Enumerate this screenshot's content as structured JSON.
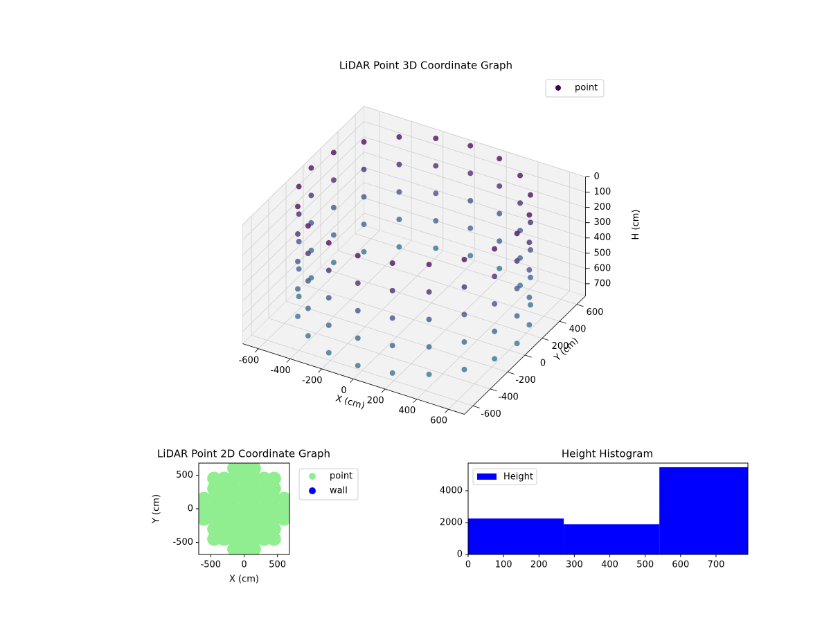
{
  "chart_data": [
    {
      "type": "scatter3d",
      "title": "LiDAR Point 3D Coordinate Graph",
      "xlabel": "X (cm)",
      "ylabel": "Y (cm)",
      "zlabel": "H (cm)",
      "xlim": [
        -700,
        700
      ],
      "ylim": [
        -700,
        700
      ],
      "zlim": [
        0,
        780
      ],
      "z_inverted": true,
      "xticks": [
        -600,
        -400,
        -200,
        0,
        200,
        400,
        600
      ],
      "yticks": [
        -600,
        -400,
        -200,
        0,
        200,
        400,
        600
      ],
      "zticks": [
        0,
        100,
        200,
        300,
        400,
        500,
        600,
        700
      ],
      "legend": "upper right",
      "grid": true,
      "series": [
        {
          "name": "point",
          "color": "#440154",
          "colormap": [
            "#440154",
            "#3b528b",
            "#2c728e"
          ],
          "x": [
            650,
            618,
            526,
            382,
            201,
            0,
            -201,
            -382,
            -526,
            -618,
            -650,
            -618,
            -526,
            -382,
            -201,
            0,
            201,
            382,
            526,
            618,
            650,
            618,
            526,
            382,
            201,
            0,
            -201,
            -382,
            -526,
            -618,
            -650,
            -618,
            -526,
            -382,
            -201,
            0,
            201,
            382,
            526,
            618,
            650,
            618,
            526,
            382,
            201,
            0,
            -201,
            -382,
            -526,
            -618,
            -650,
            -618,
            -526,
            -382,
            -201,
            0,
            201,
            382,
            526,
            618,
            650,
            618,
            526,
            382,
            201,
            0,
            -201,
            -382,
            -526,
            -618,
            -650,
            -618,
            -526,
            -382,
            -201,
            0,
            201,
            382,
            526,
            618,
            650,
            618,
            526,
            382,
            201,
            0,
            -201,
            -382,
            -526,
            -618,
            -650,
            -618,
            -526,
            -382,
            -201,
            0,
            201,
            382,
            526,
            618
          ],
          "y": [
            0,
            201,
            382,
            526,
            618,
            650,
            618,
            526,
            382,
            201,
            0,
            -201,
            -382,
            -526,
            -618,
            -650,
            -618,
            -526,
            -382,
            -201,
            0,
            201,
            382,
            526,
            618,
            650,
            618,
            526,
            382,
            201,
            0,
            -201,
            -382,
            -526,
            -618,
            -650,
            -618,
            -526,
            -382,
            -201,
            0,
            201,
            382,
            526,
            618,
            650,
            618,
            526,
            382,
            201,
            0,
            -201,
            -382,
            -526,
            -618,
            -650,
            -618,
            -526,
            -382,
            -201,
            0,
            201,
            382,
            526,
            618,
            650,
            618,
            526,
            382,
            201,
            0,
            -201,
            -382,
            -526,
            -618,
            -650,
            -618,
            -526,
            -382,
            -201,
            0,
            201,
            382,
            526,
            618,
            650,
            618,
            526,
            382,
            201,
            0,
            -201,
            -382,
            -526,
            -618,
            -650,
            -618,
            -526,
            -382,
            -201
          ],
          "z": [
            0,
            0,
            0,
            0,
            0,
            0,
            0,
            0,
            0,
            0,
            0,
            0,
            0,
            0,
            0,
            0,
            0,
            0,
            0,
            0,
            180,
            180,
            180,
            180,
            180,
            180,
            180,
            180,
            180,
            180,
            180,
            180,
            180,
            180,
            180,
            180,
            180,
            180,
            180,
            180,
            360,
            360,
            360,
            360,
            360,
            360,
            360,
            360,
            360,
            360,
            360,
            360,
            360,
            360,
            360,
            360,
            360,
            360,
            360,
            360,
            540,
            540,
            540,
            540,
            540,
            540,
            540,
            540,
            540,
            540,
            540,
            540,
            540,
            540,
            540,
            540,
            540,
            540,
            540,
            540,
            720,
            720,
            720,
            720,
            720,
            720,
            720,
            720,
            720,
            720,
            720,
            720,
            720,
            720,
            720,
            720,
            720,
            720,
            720,
            720
          ]
        }
      ]
    },
    {
      "type": "scatter",
      "title": "LiDAR Point 2D Coordinate Graph",
      "xlabel": "X (cm)",
      "ylabel": "Y (cm)",
      "xlim": [
        -680,
        680
      ],
      "ylim": [
        -680,
        680
      ],
      "xticks": [
        -500,
        0,
        500
      ],
      "yticks": [
        -500,
        0,
        500
      ],
      "legend": "outside upper right",
      "series": [
        {
          "name": "point",
          "color": "#90ee90",
          "x": [
            -600,
            -600,
            -600,
            -450,
            -450,
            -450,
            -450,
            -450,
            -450,
            -450,
            -300,
            -300,
            -300,
            -300,
            -300,
            -300,
            -300,
            -150,
            -150,
            -150,
            -150,
            -150,
            -150,
            -150,
            -150,
            -150,
            0,
            0,
            0,
            0,
            0,
            0,
            0,
            0,
            0,
            150,
            150,
            150,
            150,
            150,
            150,
            150,
            150,
            150,
            300,
            300,
            300,
            300,
            300,
            300,
            300,
            450,
            450,
            450,
            450,
            450,
            450,
            450,
            600,
            600,
            600
          ],
          "y": [
            -150,
            0,
            150,
            -450,
            -300,
            -150,
            0,
            150,
            300,
            450,
            -450,
            -300,
            -150,
            0,
            150,
            300,
            450,
            -600,
            -450,
            -300,
            -150,
            0,
            150,
            300,
            450,
            600,
            -600,
            -450,
            -300,
            -150,
            0,
            150,
            300,
            450,
            600,
            -600,
            -450,
            -300,
            -150,
            0,
            150,
            300,
            450,
            600,
            -450,
            -300,
            -150,
            0,
            150,
            300,
            450,
            -450,
            -300,
            -150,
            0,
            150,
            300,
            450,
            -150,
            0,
            150
          ]
        },
        {
          "name": "wall",
          "color": "#0000ff",
          "x": [],
          "y": []
        }
      ]
    },
    {
      "type": "histogram",
      "title": "Height Histogram",
      "bins": [
        0,
        270,
        540,
        790
      ],
      "xlim": [
        0,
        790
      ],
      "ylim": [
        0,
        5740
      ],
      "xticks": [
        0,
        100,
        200,
        300,
        400,
        500,
        600,
        700
      ],
      "yticks": [
        0,
        2000,
        4000
      ],
      "legend": "upper left",
      "series": [
        {
          "name": "Height",
          "color": "#0000ff",
          "values": [
            2260,
            1900,
            5480
          ]
        }
      ]
    }
  ]
}
